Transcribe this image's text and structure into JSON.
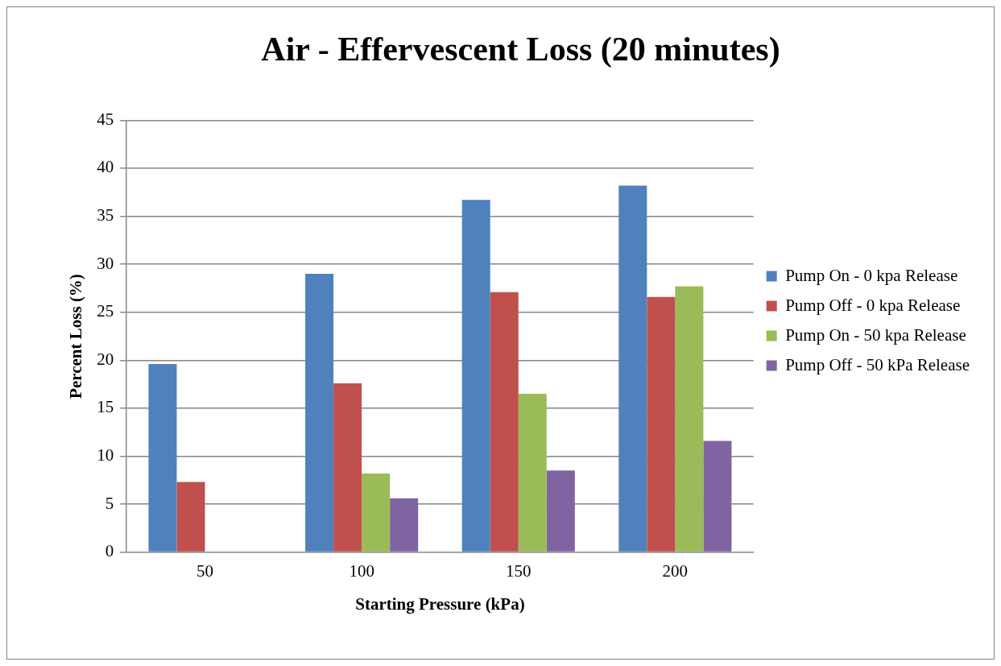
{
  "chart_data": {
    "type": "bar",
    "title": "Air - Effervescent Loss (20 minutes)",
    "xlabel": "Starting Pressure (kPa)",
    "ylabel": "Percent Loss (%)",
    "categories": [
      "50",
      "100",
      "150",
      "200"
    ],
    "series": [
      {
        "name": "Pump On - 0 kpa Release",
        "color": "#4f81bd",
        "values": [
          19.6,
          29.0,
          36.7,
          38.2
        ]
      },
      {
        "name": "Pump Off - 0 kpa Release",
        "color": "#c0504d",
        "values": [
          7.3,
          17.6,
          27.1,
          26.6
        ]
      },
      {
        "name": "Pump On - 50 kpa Release",
        "color": "#9bbb59",
        "values": [
          null,
          8.2,
          16.5,
          27.7
        ]
      },
      {
        "name": "Pump Off - 50 kPa Release",
        "color": "#8064a2",
        "values": [
          null,
          5.6,
          8.5,
          11.6
        ]
      }
    ],
    "ylim": [
      0,
      45
    ],
    "yticks": [
      0,
      5,
      10,
      15,
      20,
      25,
      30,
      35,
      40,
      45
    ],
    "grid": "y",
    "legend": "right"
  }
}
